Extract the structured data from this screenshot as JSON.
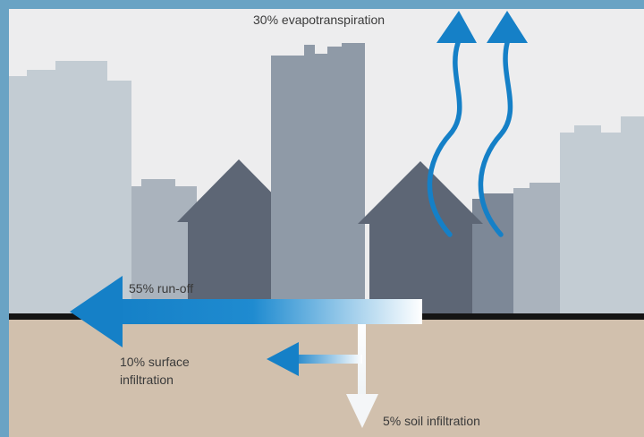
{
  "diagram": {
    "labels": {
      "evapotranspiration": "30% evapotranspiration",
      "runoff": "55% run-off",
      "surface_infiltration": "10% surface\ninfiltration",
      "soil_infiltration": "5% soil infiltration"
    },
    "colors": {
      "frame": "#6aa3c4",
      "sky": "#ededee",
      "ground": "#d1c0ad",
      "ground_line": "#141414",
      "building_light": "#c3ccd3",
      "building_mid": "#8f9aa7",
      "building_dark": "#5d6675",
      "arrow_blue": "#1580c7"
    },
    "icons": {
      "evapotranspiration": "wavy-up-arrow-icon",
      "runoff": "left-arrow-icon",
      "surface_infiltration": "left-arrow-icon",
      "soil_infiltration": "down-arrow-icon"
    }
  }
}
